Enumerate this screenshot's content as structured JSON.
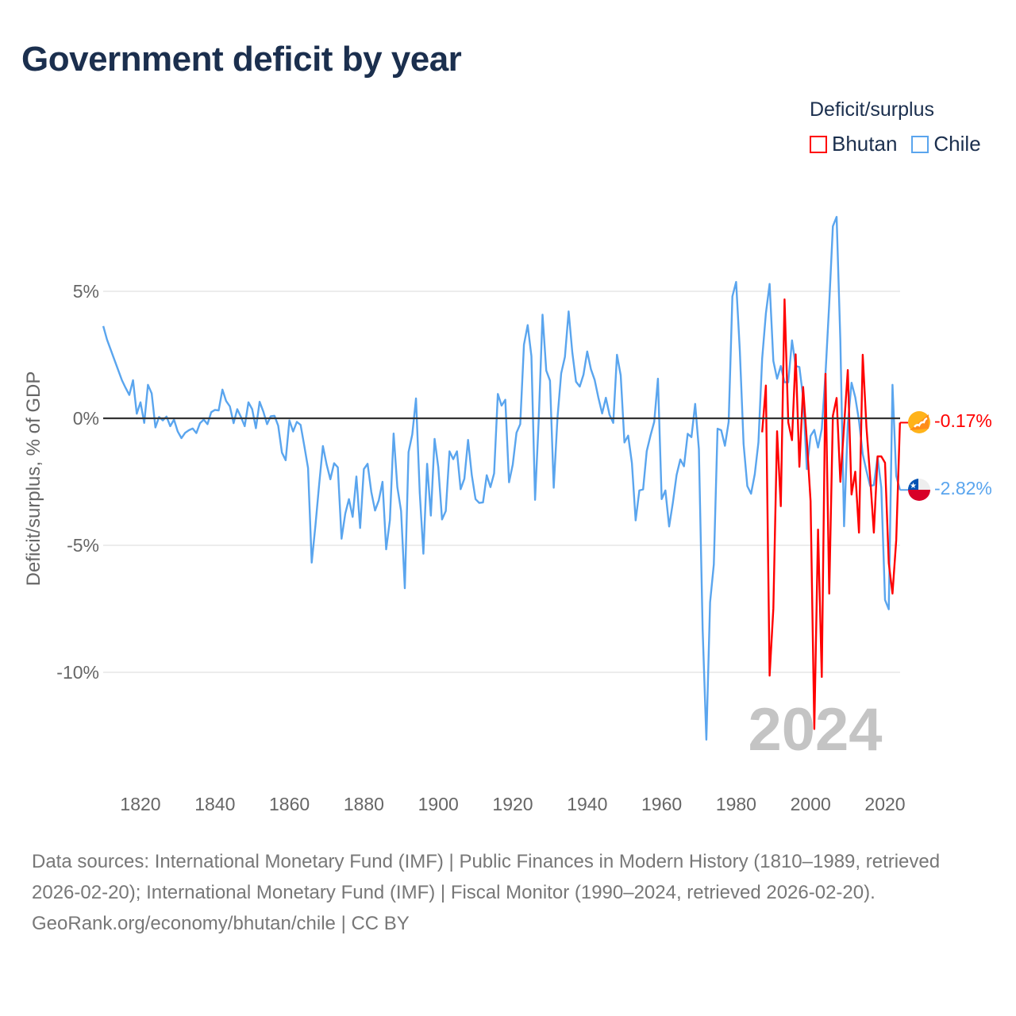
{
  "title": "Government deficit by year",
  "legend": {
    "title": "Deficit/surplus",
    "items": [
      {
        "label": "Bhutan",
        "color": "#ff0000"
      },
      {
        "label": "Chile",
        "color": "#5aa5ee"
      }
    ]
  },
  "current_year": "2024",
  "end_labels": {
    "bhutan": "-0.17%",
    "chile": "-2.82%"
  },
  "footer": {
    "sources": "Data sources: International Monetary Fund (IMF) | Public Finances in Modern History (1810–1989, retrieved 2026-02-20); International Monetary Fund (IMF) | Fiscal Monitor (1990–2024, retrieved 2026-02-20).",
    "credit": "GeoRank.org/economy/bhutan/chile | CC BY"
  },
  "chart_data": {
    "type": "line",
    "title": "Government deficit by year",
    "xlabel": "",
    "ylabel": "Deficit/surplus, % of GDP",
    "xlim": [
      1810,
      2024
    ],
    "ylim": [
      -13,
      8
    ],
    "x_ticks": [
      1820,
      1840,
      1860,
      1880,
      1900,
      1920,
      1940,
      1960,
      1980,
      2000,
      2020
    ],
    "y_ticks": [
      {
        "value": 5,
        "label": "5%"
      },
      {
        "value": 0,
        "label": "0%"
      },
      {
        "value": -5,
        "label": "-5%"
      },
      {
        "value": -10,
        "label": "-10%"
      }
    ],
    "grid": true,
    "legend_position": "top-right",
    "series": [
      {
        "name": "Chile",
        "color": "#5aa5ee",
        "start_year": 1810,
        "values": [
          3.63,
          3.1,
          2.7,
          2.3,
          1.9,
          1.5,
          1.2,
          0.92,
          1.5,
          0.18,
          0.63,
          -0.18,
          1.32,
          0.98,
          -0.36,
          0.05,
          -0.08,
          0.07,
          -0.31,
          -0.05,
          -0.52,
          -0.78,
          -0.57,
          -0.47,
          -0.4,
          -0.58,
          -0.19,
          -0.05,
          -0.23,
          0.24,
          0.33,
          0.31,
          1.13,
          0.68,
          0.47,
          -0.19,
          0.36,
          0.05,
          -0.31,
          0.63,
          0.36,
          -0.39,
          0.65,
          0.26,
          -0.23,
          0.08,
          0.1,
          -0.29,
          -1.35,
          -1.65,
          -0.08,
          -0.52,
          -0.14,
          -0.26,
          -1.09,
          -1.96,
          -5.68,
          -4.22,
          -2.6,
          -1.09,
          -1.82,
          -2.4,
          -1.77,
          -1.93,
          -4.74,
          -3.75,
          -3.18,
          -3.88,
          -2.29,
          -4.32,
          -2.0,
          -1.79,
          -2.9,
          -3.63,
          -3.23,
          -2.5,
          -5.16,
          -4.01,
          -0.6,
          -2.71,
          -3.65,
          -6.69,
          -1.33,
          -0.63,
          0.78,
          -2.92,
          -5.33,
          -1.79,
          -3.83,
          -0.81,
          -1.93,
          -3.98,
          -3.65,
          -1.3,
          -1.61,
          -1.3,
          -2.79,
          -2.38,
          -0.85,
          -2.24,
          -3.18,
          -3.33,
          -3.31,
          -2.24,
          -2.71,
          -2.17,
          0.96,
          0.5,
          0.73,
          -2.52,
          -1.82,
          -0.57,
          -0.23,
          2.9,
          3.67,
          2.45,
          -3.21,
          0.0,
          4.08,
          1.88,
          1.48,
          -2.73,
          0.0,
          1.77,
          2.42,
          4.21,
          2.6,
          1.44,
          1.25,
          1.72,
          2.63,
          1.93,
          1.51,
          0.81,
          0.19,
          0.81,
          0.14,
          -0.18,
          2.5,
          1.69,
          -0.95,
          -0.68,
          -1.76,
          -4.02,
          -2.84,
          -2.8,
          -1.29,
          -0.68,
          -0.14,
          1.56,
          -3.18,
          -2.84,
          -4.26,
          -3.32,
          -2.23,
          -1.62,
          -1.89,
          -0.61,
          -0.74,
          0.57,
          -1.22,
          -8.3,
          -12.65,
          -7.24,
          -5.75,
          -0.41,
          -0.47,
          -1.08,
          -0.14,
          4.8,
          5.37,
          2.64,
          -1.01,
          -2.67,
          -2.97,
          -2.2,
          -0.95,
          2.35,
          4.13,
          5.29,
          2.26,
          1.56,
          2.06,
          1.42,
          1.42,
          3.07,
          2.06,
          2.02,
          0.83,
          -2.0,
          -0.69,
          -0.46,
          -1.15,
          -0.42,
          1.75,
          4.52,
          7.56,
          7.93,
          3.07,
          -4.25,
          -0.22,
          1.4,
          0.83,
          -0.09,
          -1.41,
          -2.07,
          -2.66,
          -2.63,
          -1.52,
          -2.73,
          -7.15,
          -7.52,
          1.32,
          -2.27,
          -2.82
        ]
      },
      {
        "name": "Bhutan",
        "color": "#ff0000",
        "start_year": 1987,
        "values": [
          -0.55,
          1.29,
          -10.13,
          -7.49,
          -0.51,
          -3.46,
          4.68,
          -0.16,
          -0.86,
          2.52,
          -1.91,
          1.23,
          -0.88,
          -3.26,
          -12.23,
          -4.38,
          -10.18,
          1.75,
          -6.9,
          0.1,
          0.8,
          -2.5,
          -0.3,
          1.9,
          -3.0,
          -2.1,
          -4.5,
          2.5,
          -0.35,
          -2.3,
          -4.5,
          -1.5,
          -1.5,
          -1.75,
          -5.7,
          -6.9,
          -4.8,
          -0.17
        ]
      }
    ]
  }
}
